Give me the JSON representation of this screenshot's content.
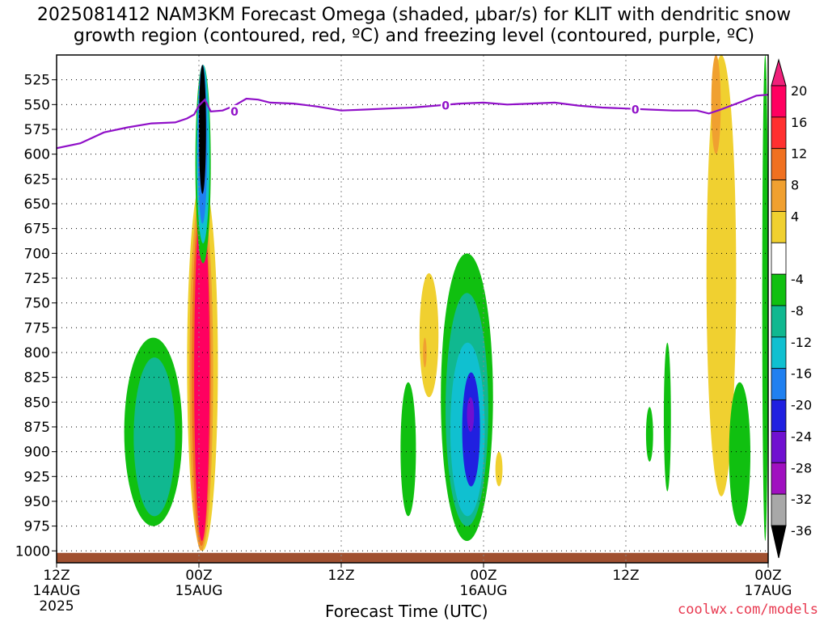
{
  "title_line1": "2025081412 NAM3KM Forecast Omega (shaded, μbar/s) for KLIT with dendritic snow",
  "title_line2": "growth region (contoured, red, ºC) and freezing level (contoured, purple, ºC)",
  "credit": "coolwx.com/models",
  "chart_data": {
    "type": "heatmap",
    "title": "2025081412 NAM3KM Forecast Omega (shaded, μbar/s) for KLIT with dendritic snow growth region (contoured, red, ºC) and freezing level (contoured, purple, ºC)",
    "xlabel": "Forecast Time (UTC)",
    "ylabel": "",
    "x_unit": "forecast hour from 2025-08-14 12Z",
    "xlim": [
      0,
      60
    ],
    "x_ticks": [
      {
        "x": 0,
        "label": "12Z",
        "sub1": "14AUG",
        "sub2": "2025"
      },
      {
        "x": 12,
        "label": "00Z",
        "sub1": "15AUG",
        "sub2": ""
      },
      {
        "x": 24,
        "label": "12Z",
        "sub1": "",
        "sub2": ""
      },
      {
        "x": 36,
        "label": "00Z",
        "sub1": "16AUG",
        "sub2": ""
      },
      {
        "x": 48,
        "label": "12Z",
        "sub1": "",
        "sub2": ""
      },
      {
        "x": 60,
        "label": "00Z",
        "sub1": "17AUG",
        "sub2": ""
      }
    ],
    "y_unit": "hPa",
    "ylim": [
      1012,
      500
    ],
    "y_ticks": [
      525,
      550,
      575,
      600,
      625,
      650,
      675,
      700,
      725,
      750,
      775,
      800,
      825,
      850,
      875,
      900,
      925,
      950,
      975,
      1000
    ],
    "grid": true,
    "colorbar": {
      "labels": [
        "20",
        "16",
        "12",
        "8",
        "4",
        "-4",
        "-8",
        "-12",
        "-16",
        "-20",
        "-24",
        "-28",
        "-32",
        "-36"
      ],
      "colors": [
        "#ff0060",
        "#ff3030",
        "#f07020",
        "#f0a030",
        "#f0d030",
        "#ffffff",
        "#10c010",
        "#10b890",
        "#10c0d0",
        "#2080f0",
        "#2020e0",
        "#7010d0",
        "#a010c0",
        "#a8a8a8"
      ],
      "top_triangle_color": "#f0207a",
      "bottom_triangle_color": "#000000"
    },
    "freezing_level": {
      "name": "0",
      "color": "#9010c8",
      "x": [
        0,
        2,
        4,
        6,
        8,
        10,
        11,
        11.6,
        12,
        12.5,
        13,
        14,
        15,
        16,
        17,
        18,
        20,
        22,
        24,
        26,
        28,
        30,
        32,
        34,
        36,
        38,
        40,
        42,
        44,
        46,
        48,
        50,
        52,
        54,
        55,
        56,
        58,
        59,
        60
      ],
      "y": [
        594,
        589,
        578,
        573,
        569,
        568,
        564,
        560,
        551,
        545,
        557,
        556,
        551,
        544,
        545,
        548,
        549,
        552,
        556,
        555,
        554,
        553,
        551,
        549,
        548,
        550,
        549,
        548,
        551,
        553,
        554,
        555,
        556,
        556,
        559,
        555,
        546,
        541,
        540
      ],
      "labels": [
        {
          "x": 15,
          "y": 557,
          "text": "0"
        },
        {
          "x": 32.8,
          "y": 551,
          "text": "0"
        },
        {
          "x": 48.8,
          "y": 555,
          "text": "0"
        }
      ]
    },
    "omega_regions": [
      {
        "value": 4,
        "color": "#f0d030",
        "x": [
          11.0,
          13.6
        ],
        "p": [
          625,
          1000
        ]
      },
      {
        "value": 8,
        "color": "#f0a030",
        "x": [
          11.2,
          13.2
        ],
        "p": [
          640,
          1000
        ]
      },
      {
        "value": 12,
        "color": "#f07020",
        "x": [
          11.4,
          13.0
        ],
        "p": [
          650,
          995
        ]
      },
      {
        "value": 20,
        "color": "#ff0060",
        "x": [
          11.6,
          12.9
        ],
        "p": [
          650,
          990
        ]
      },
      {
        "value": -8,
        "color": "#10c010",
        "x": [
          11.7,
          13.0
        ],
        "p": [
          510,
          710
        ]
      },
      {
        "value": -16,
        "color": "#10c0d0",
        "x": [
          11.8,
          12.9
        ],
        "p": [
          510,
          690
        ]
      },
      {
        "value": -20,
        "color": "#2080f0",
        "x": [
          11.9,
          12.7
        ],
        "p": [
          510,
          670
        ]
      },
      {
        "value": -36,
        "color": "#000000",
        "x": [
          12.0,
          12.6
        ],
        "p": [
          510,
          640
        ]
      },
      {
        "value": -8,
        "color": "#10c010",
        "x": [
          5.7,
          10.6
        ],
        "p": [
          785,
          975
        ]
      },
      {
        "value": -12,
        "color": "#10b890",
        "x": [
          6.5,
          10.0
        ],
        "p": [
          805,
          965
        ]
      },
      {
        "value": -8,
        "color": "#10c010",
        "x": [
          29.0,
          30.3
        ],
        "p": [
          830,
          965
        ]
      },
      {
        "value": -8,
        "color": "#10c010",
        "x": [
          32.4,
          36.8
        ],
        "p": [
          700,
          990
        ]
      },
      {
        "value": -12,
        "color": "#10b890",
        "x": [
          32.8,
          36.4
        ],
        "p": [
          740,
          975
        ]
      },
      {
        "value": -16,
        "color": "#10c0d0",
        "x": [
          33.2,
          36.1
        ],
        "p": [
          790,
          965
        ]
      },
      {
        "value": -24,
        "color": "#2020e0",
        "x": [
          34.2,
          35.7
        ],
        "p": [
          820,
          935
        ]
      },
      {
        "value": -28,
        "color": "#7010d0",
        "x": [
          34.6,
          35.2
        ],
        "p": [
          845,
          880
        ]
      },
      {
        "value": 4,
        "color": "#f0d030",
        "x": [
          30.6,
          32.2
        ],
        "p": [
          720,
          845
        ]
      },
      {
        "value": 8,
        "color": "#f0a030",
        "x": [
          30.9,
          31.2
        ],
        "p": [
          785,
          815
        ]
      },
      {
        "value": 4,
        "color": "#f0d030",
        "x": [
          37.0,
          37.6
        ],
        "p": [
          900,
          935
        ]
      },
      {
        "value": 4,
        "color": "#f0d030",
        "x": [
          54.8,
          57.3
        ],
        "p": [
          500,
          945
        ]
      },
      {
        "value": 8,
        "color": "#f0a030",
        "x": [
          55.2,
          56.0
        ],
        "p": [
          500,
          600
        ]
      },
      {
        "value": -8,
        "color": "#10c010",
        "x": [
          56.7,
          58.5
        ],
        "p": [
          830,
          975
        ]
      },
      {
        "value": -8,
        "color": "#10c010",
        "x": [
          49.7,
          50.3
        ],
        "p": [
          855,
          910
        ]
      },
      {
        "value": -8,
        "color": "#10c010",
        "x": [
          51.2,
          51.8
        ],
        "p": [
          790,
          940
        ]
      },
      {
        "value": -8,
        "color": "#10c010",
        "x": [
          59.5,
          60.0
        ],
        "p": [
          500,
          990
        ]
      }
    ],
    "terrain": {
      "color": "#a05030",
      "surface_p": 1002
    }
  }
}
